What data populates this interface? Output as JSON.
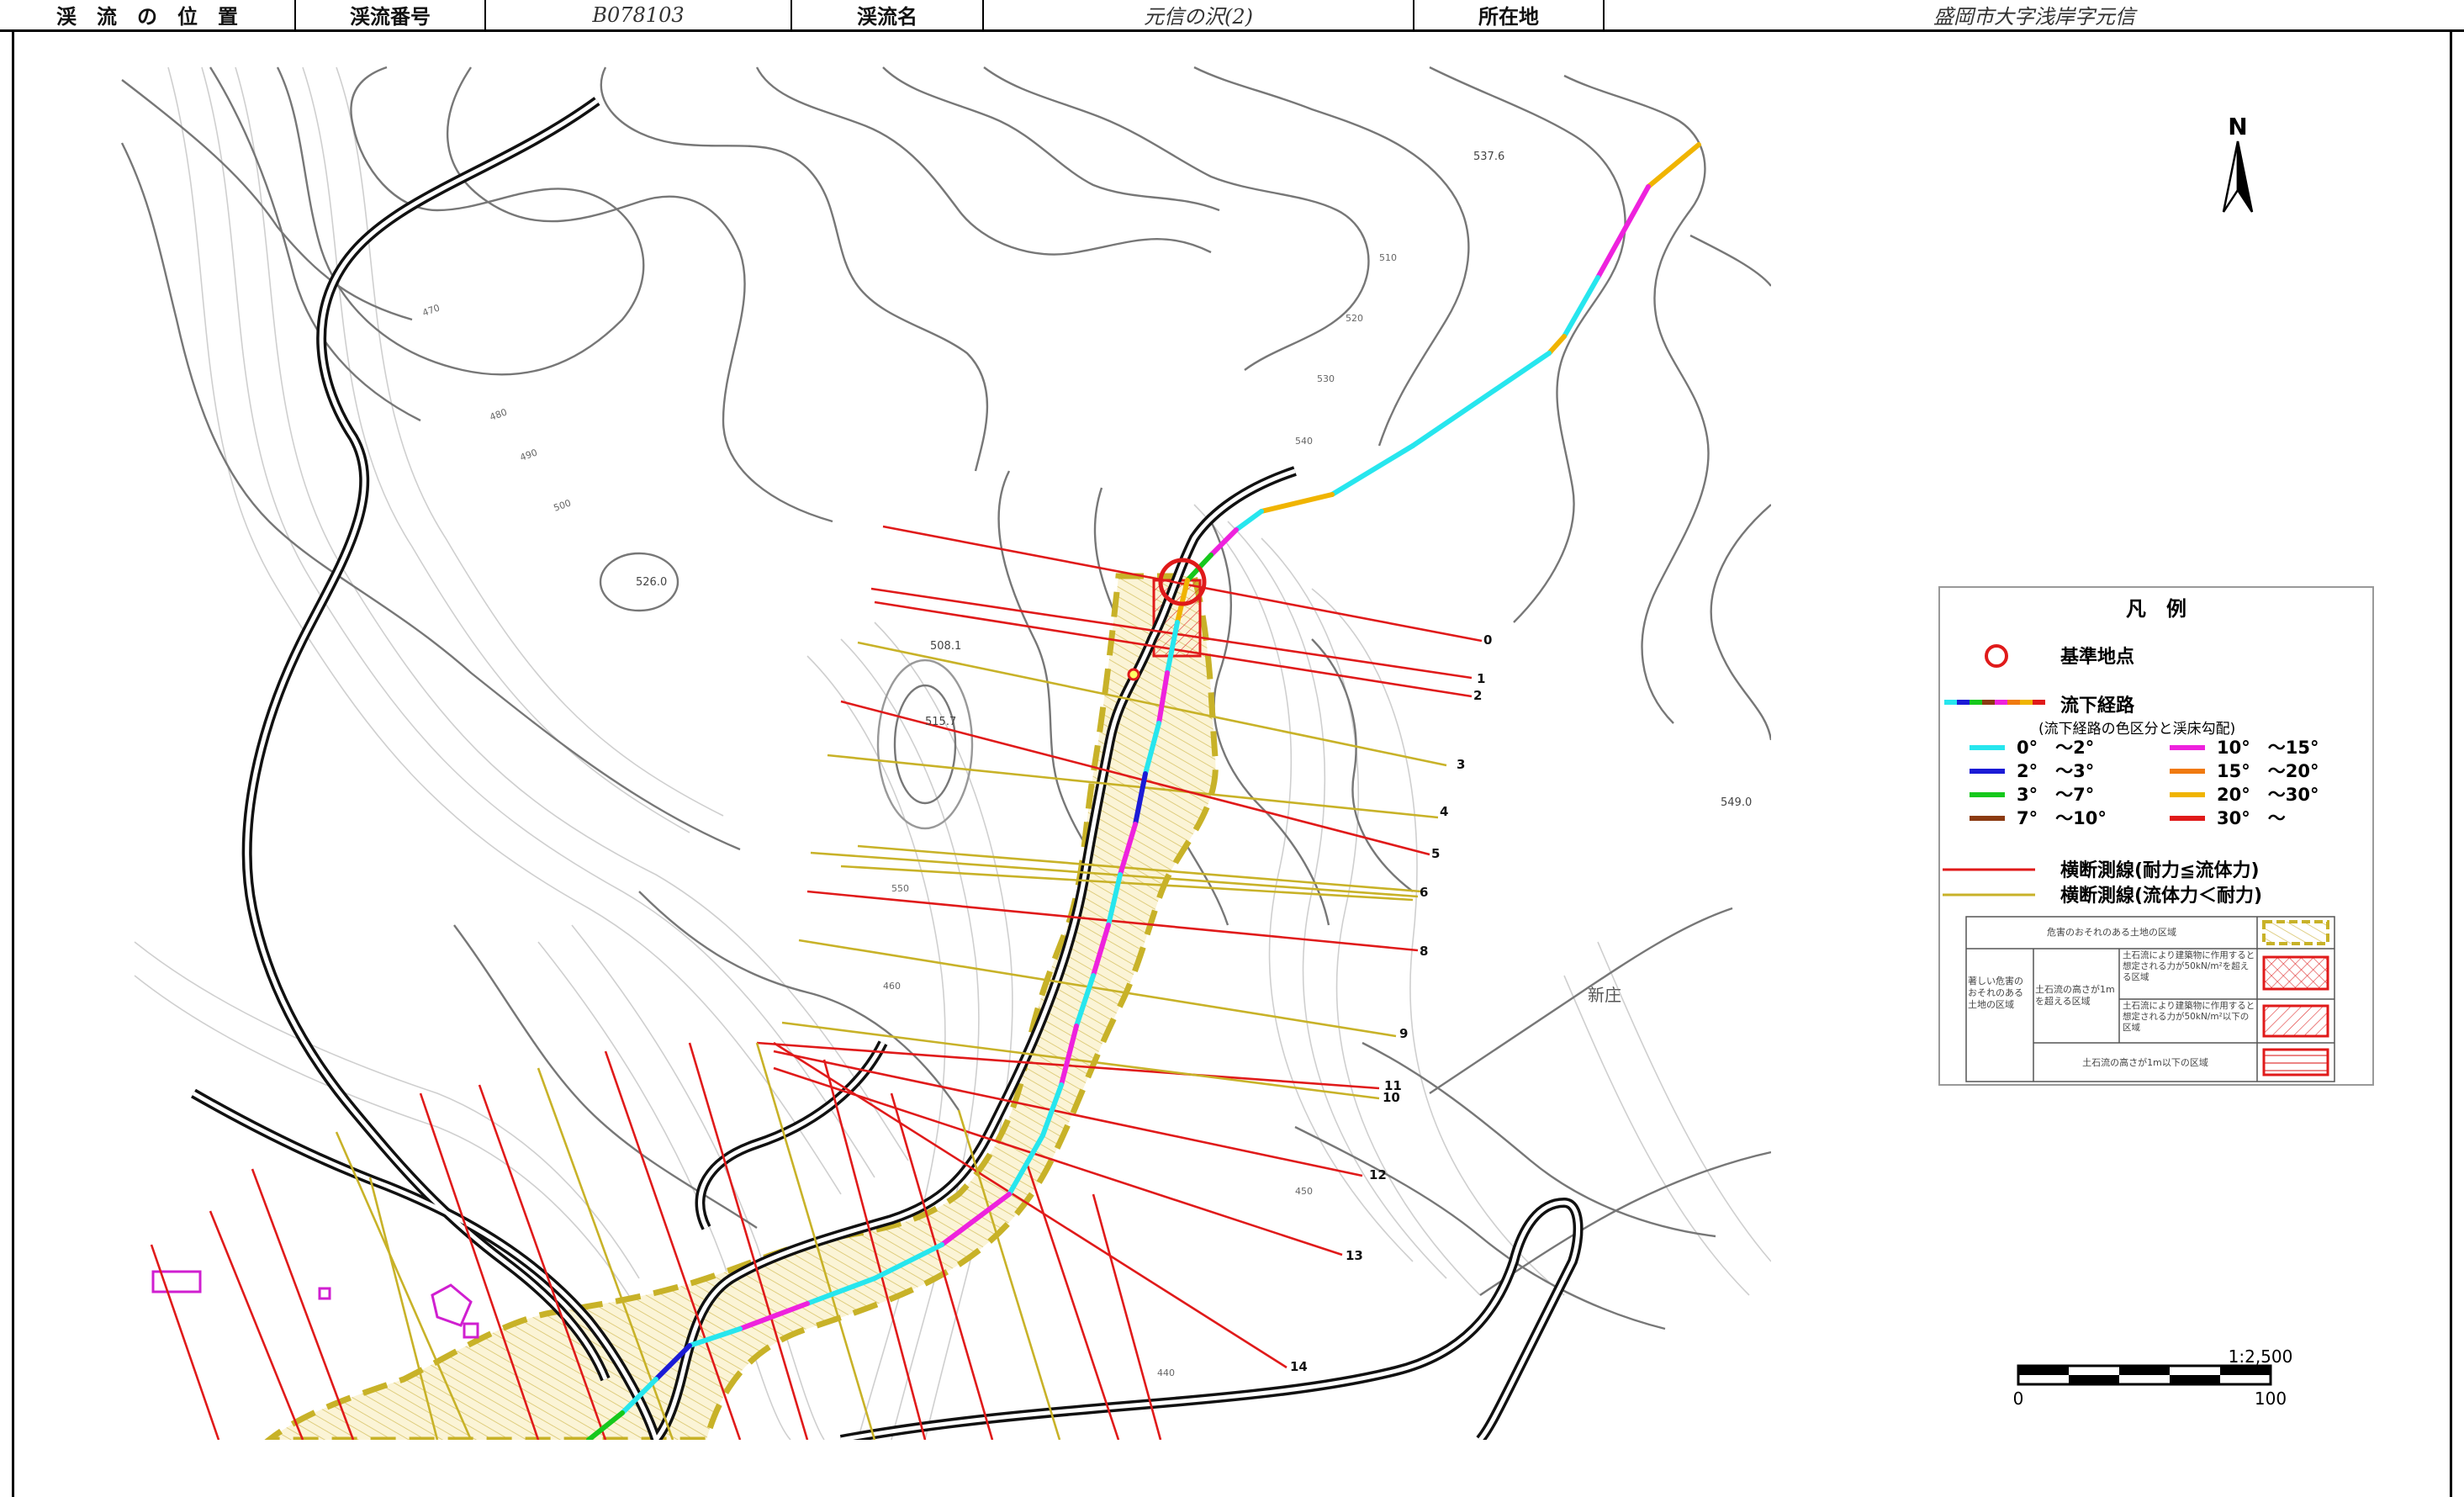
{
  "header": {
    "loc_label": "渓　流　の　位　置",
    "no_label": "渓流番号",
    "no_value": "B078103",
    "name_label": "渓流名",
    "name_value": "元信の沢(2)",
    "addr_label": "所在地",
    "addr_value": "盛岡市大字浅岸字元信"
  },
  "map": {
    "north": "N",
    "place_name": "新庄",
    "elevations": [
      "537.6",
      "526.0",
      "508.1",
      "515.7",
      "549.0"
    ],
    "contour_labels": [
      "470",
      "480",
      "490",
      "500",
      "510",
      "520",
      "530",
      "540",
      "550",
      "460",
      "450",
      "440"
    ],
    "section_numbers": [
      "0",
      "1",
      "2",
      "3",
      "4",
      "5",
      "6",
      "8",
      "9",
      "11",
      "10",
      "12",
      "13",
      "14"
    ],
    "scale_ratio": "1:2,500",
    "scale_zero": "0",
    "scale_max": "100"
  },
  "legend": {
    "title": "凡　例",
    "ref_point": "基準地点",
    "route": "流下経路",
    "route_note": "(流下経路の色区分と渓床勾配)",
    "slopes": [
      {
        "label": "0°　～2°",
        "color": "#27e6ee"
      },
      {
        "label": "2°　～3°",
        "color": "#1b1bd6"
      },
      {
        "label": "3°　～7°",
        "color": "#16c81c"
      },
      {
        "label": "7°　～10°",
        "color": "#8b3a12"
      },
      {
        "label": "10°　～15°",
        "color": "#ee22dd"
      },
      {
        "label": "15°　～20°",
        "color": "#f07a10"
      },
      {
        "label": "20°　～30°",
        "color": "#f0b400"
      },
      {
        "label": "30°　～",
        "color": "#e01a1a"
      }
    ],
    "section_red": "横断測線(耐力≦流体力)",
    "section_yellow": "横断測線(流体力＜耐力)",
    "zone_hazard": "危害のおそれのある土地の区域",
    "zone_severe": "著しい危害のおそれのある土地の区域",
    "zone_height_over": "土石流の高さが1mを超える区域",
    "zone_force_over": "土石流により建築物に作用すると想定される力が50kN/m²を超える区域",
    "zone_force_under": "土石流により建築物に作用すると想定される力が50kN/m²以下の区域",
    "zone_height_under": "土石流の高さが1m以下の区域"
  }
}
